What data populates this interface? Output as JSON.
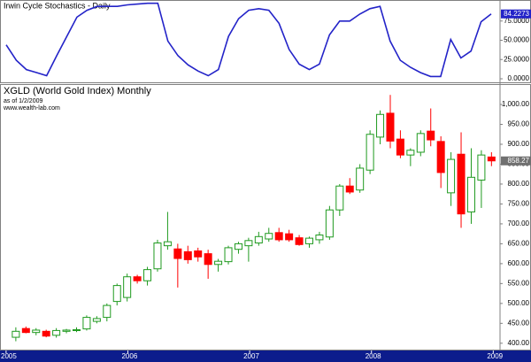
{
  "chart_data": [
    {
      "type": "line",
      "title": "Irwin Cycle Stochastics - Daily",
      "color": "#2323c8",
      "ylim": [
        0,
        100
      ],
      "yticks": [
        {
          "value": 0,
          "label": "0.0000"
        },
        {
          "value": 25,
          "label": "25.0000"
        },
        {
          "value": 50,
          "label": "50.0000"
        },
        {
          "value": 75,
          "label": "75.0000"
        }
      ],
      "values": [
        44,
        24,
        12,
        8,
        4,
        30,
        55,
        80,
        89,
        94,
        94,
        94,
        96,
        97,
        98,
        98,
        49,
        30,
        18,
        10,
        4,
        12,
        55,
        78,
        89,
        91,
        89,
        72,
        38,
        19,
        12,
        19,
        57,
        75,
        75,
        84,
        91,
        94,
        49,
        24,
        15,
        8,
        3,
        3,
        51,
        27,
        36,
        74,
        84.2273
      ]
    },
    {
      "type": "candlestick",
      "title": "XGLD (World Gold Index) Monthly",
      "subtitle": "as of 1/2/2009",
      "annotation": "www.wealth-lab.com",
      "up_color": "#1f9a1f",
      "down_color": "#ff0000",
      "ylim": [
        384,
        1049
      ],
      "yticks": [
        {
          "value": 400,
          "label": "400.00"
        },
        {
          "value": 450,
          "label": "450.00"
        },
        {
          "value": 500,
          "label": "500.00"
        },
        {
          "value": 550,
          "label": "550.00"
        },
        {
          "value": 600,
          "label": "600.00"
        },
        {
          "value": 650,
          "label": "650.00"
        },
        {
          "value": 700,
          "label": "700.00"
        },
        {
          "value": 750,
          "label": "750.00"
        },
        {
          "value": 800,
          "label": "800.00"
        },
        {
          "value": 850,
          "label": "850.00"
        },
        {
          "value": 900,
          "label": "900.00"
        },
        {
          "value": 950,
          "label": "950.00"
        },
        {
          "value": 1000,
          "label": "1,000.00"
        }
      ],
      "xlim": [
        2004.95,
        2009.31
      ],
      "xticks": [
        2005,
        2006,
        2007,
        2008,
        2009
      ],
      "open": [
        415,
        437,
        427,
        430,
        420,
        430,
        432,
        436,
        455,
        465,
        505,
        515,
        567,
        557,
        587,
        645,
        637,
        630,
        632,
        625,
        598,
        605,
        636,
        645,
        652,
        662,
        678,
        675,
        665,
        650,
        660,
        667,
        735,
        795,
        785,
        835,
        918,
        978,
        913,
        873,
        880,
        933,
        907,
        778,
        875,
        730,
        810,
        868
      ],
      "high": [
        440,
        442,
        438,
        434,
        438,
        436,
        440,
        470,
        468,
        500,
        550,
        575,
        572,
        592,
        660,
        730,
        650,
        645,
        640,
        635,
        612,
        645,
        655,
        665,
        680,
        690,
        690,
        685,
        672,
        668,
        680,
        745,
        800,
        815,
        850,
        935,
        985,
        1024,
        935,
        890,
        935,
        990,
        920,
        880,
        930,
        890,
        885,
        880
      ],
      "low": [
        405,
        425,
        420,
        415,
        414,
        425,
        428,
        432,
        450,
        455,
        495,
        505,
        550,
        545,
        580,
        635,
        540,
        600,
        605,
        562,
        580,
        598,
        625,
        605,
        645,
        655,
        655,
        655,
        645,
        640,
        650,
        660,
        720,
        775,
        778,
        825,
        900,
        890,
        865,
        845,
        870,
        895,
        790,
        745,
        690,
        700,
        740,
        845
      ],
      "close": [
        430,
        427,
        433,
        418,
        432,
        433,
        434,
        465,
        462,
        495,
        545,
        567,
        557,
        585,
        652,
        655,
        613,
        610,
        617,
        598,
        606,
        640,
        650,
        658,
        668,
        676,
        660,
        660,
        648,
        664,
        672,
        735,
        795,
        780,
        840,
        925,
        975,
        908,
        873,
        885,
        927,
        911,
        829,
        862,
        725,
        817,
        873,
        858.27
      ]
    }
  ]
}
